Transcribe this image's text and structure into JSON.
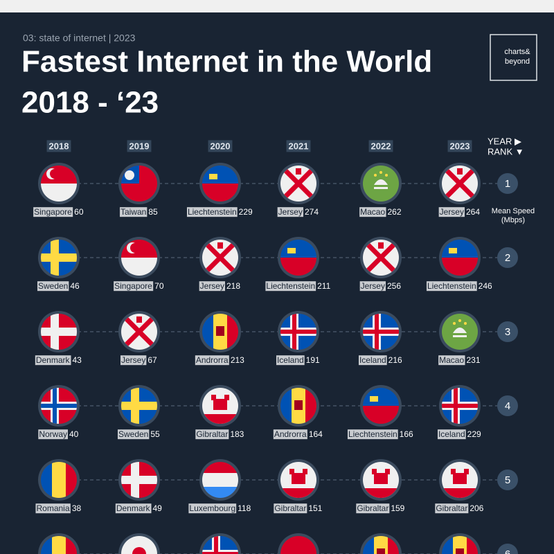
{
  "header": {
    "kicker": "03: state of internet | 2023",
    "title_line1": "Fastest Internet in the World",
    "title_line2": "2018 - ‘23",
    "logo": [
      "charts&",
      "beyond"
    ]
  },
  "legend": {
    "year": "YEAR ▶",
    "rank": "RANK ▼",
    "unit": [
      "Mean Speed",
      "(Mbps)"
    ]
  },
  "years": [
    "2018",
    "2019",
    "2020",
    "2021",
    "2022",
    "2023"
  ],
  "ranks": [
    {
      "rank": "1",
      "entries": [
        {
          "country": "Singapore",
          "speed": 60
        },
        {
          "country": "Taiwan",
          "speed": 85
        },
        {
          "country": "Liechtenstein",
          "speed": 229
        },
        {
          "country": "Jersey",
          "speed": 274
        },
        {
          "country": "Macao",
          "speed": 262
        },
        {
          "country": "Jersey",
          "speed": 264
        }
      ]
    },
    {
      "rank": "2",
      "entries": [
        {
          "country": "Sweden",
          "speed": 46
        },
        {
          "country": "Singapore",
          "speed": 70
        },
        {
          "country": "Jersey",
          "speed": 218
        },
        {
          "country": "Liechtenstein",
          "speed": 211
        },
        {
          "country": "Jersey",
          "speed": 256
        },
        {
          "country": "Liechtenstein",
          "speed": 246
        }
      ]
    },
    {
      "rank": "3",
      "entries": [
        {
          "country": "Denmark",
          "speed": 43
        },
        {
          "country": "Jersey",
          "speed": 67
        },
        {
          "country": "Androrra",
          "speed": 213
        },
        {
          "country": "Iceland",
          "speed": 191
        },
        {
          "country": "Iceland",
          "speed": 216
        },
        {
          "country": "Macao",
          "speed": 231
        }
      ]
    },
    {
      "rank": "4",
      "entries": [
        {
          "country": "Norway",
          "speed": 40
        },
        {
          "country": "Sweden",
          "speed": 55
        },
        {
          "country": "Gibraltar",
          "speed": 183
        },
        {
          "country": "Androrra",
          "speed": 164
        },
        {
          "country": "Liechtenstein",
          "speed": 166
        },
        {
          "country": "Iceland",
          "speed": 229
        }
      ]
    },
    {
      "rank": "5",
      "entries": [
        {
          "country": "Romania",
          "speed": 38
        },
        {
          "country": "Denmark",
          "speed": 49
        },
        {
          "country": "Luxembourg",
          "speed": 118
        },
        {
          "country": "Gibraltar",
          "speed": 151
        },
        {
          "country": "Gibraltar",
          "speed": 159
        },
        {
          "country": "Gibraltar",
          "speed": 206
        }
      ]
    },
    {
      "rank": "6",
      "entries": []
    }
  ]
}
